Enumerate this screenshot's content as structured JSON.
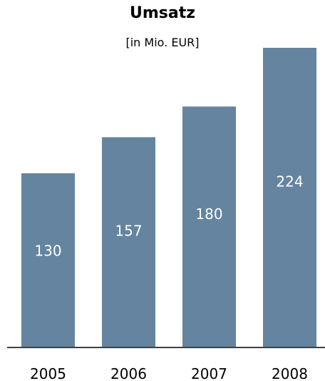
{
  "chart_data": {
    "type": "bar",
    "title": "Umsatz",
    "subtitle": "[in Mio. EUR]",
    "categories": [
      "2005",
      "2006",
      "2007",
      "2008"
    ],
    "values": [
      130,
      157,
      180,
      224
    ],
    "ylim": [
      0,
      224
    ],
    "grid": false,
    "bar_color": "#64849f",
    "label_color": "#ffffff"
  }
}
